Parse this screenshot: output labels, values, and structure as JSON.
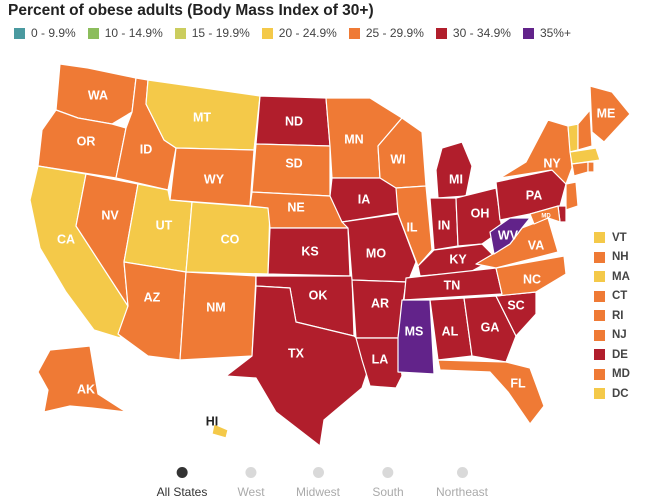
{
  "title": "Percent of obese adults (Body Mass Index of 30+)",
  "legend": [
    {
      "label": "0 - 9.9%",
      "color": "#4a9aa0"
    },
    {
      "label": "10 - 14.9%",
      "color": "#8cbd5c"
    },
    {
      "label": "15 - 19.9%",
      "color": "#cbcd5e"
    },
    {
      "label": "20 - 24.9%",
      "color": "#f4c949"
    },
    {
      "label": "25 - 29.9%",
      "color": "#ef7a35"
    },
    {
      "label": "30 - 34.9%",
      "color": "#b11e2c"
    },
    {
      "label": "35%+",
      "color": "#62238a"
    }
  ],
  "states": [
    {
      "abbr": "WA",
      "bin": 4
    },
    {
      "abbr": "OR",
      "bin": 4
    },
    {
      "abbr": "CA",
      "bin": 3
    },
    {
      "abbr": "ID",
      "bin": 4
    },
    {
      "abbr": "NV",
      "bin": 4
    },
    {
      "abbr": "MT",
      "bin": 3
    },
    {
      "abbr": "WY",
      "bin": 4
    },
    {
      "abbr": "UT",
      "bin": 3
    },
    {
      "abbr": "CO",
      "bin": 3
    },
    {
      "abbr": "AZ",
      "bin": 4
    },
    {
      "abbr": "NM",
      "bin": 4
    },
    {
      "abbr": "ND",
      "bin": 5
    },
    {
      "abbr": "SD",
      "bin": 4
    },
    {
      "abbr": "NE",
      "bin": 4
    },
    {
      "abbr": "KS",
      "bin": 5
    },
    {
      "abbr": "OK",
      "bin": 5
    },
    {
      "abbr": "TX",
      "bin": 5
    },
    {
      "abbr": "MN",
      "bin": 4
    },
    {
      "abbr": "IA",
      "bin": 5
    },
    {
      "abbr": "MO",
      "bin": 5
    },
    {
      "abbr": "AR",
      "bin": 5
    },
    {
      "abbr": "LA",
      "bin": 5
    },
    {
      "abbr": "WI",
      "bin": 4
    },
    {
      "abbr": "IL",
      "bin": 4
    },
    {
      "abbr": "MI",
      "bin": 5
    },
    {
      "abbr": "IN",
      "bin": 5
    },
    {
      "abbr": "OH",
      "bin": 5
    },
    {
      "abbr": "KY",
      "bin": 5
    },
    {
      "abbr": "TN",
      "bin": 5
    },
    {
      "abbr": "MS",
      "bin": 6
    },
    {
      "abbr": "AL",
      "bin": 5
    },
    {
      "abbr": "GA",
      "bin": 5
    },
    {
      "abbr": "FL",
      "bin": 4
    },
    {
      "abbr": "SC",
      "bin": 5
    },
    {
      "abbr": "NC",
      "bin": 4
    },
    {
      "abbr": "VA",
      "bin": 4
    },
    {
      "abbr": "WV",
      "bin": 6
    },
    {
      "abbr": "PA",
      "bin": 5
    },
    {
      "abbr": "NY",
      "bin": 4
    },
    {
      "abbr": "ME",
      "bin": 4
    },
    {
      "abbr": "AK",
      "bin": 4
    },
    {
      "abbr": "HI",
      "bin": 3
    },
    {
      "abbr": "MD",
      "bin": 4
    }
  ],
  "small_states": [
    {
      "abbr": "VT",
      "bin": 3
    },
    {
      "abbr": "NH",
      "bin": 4
    },
    {
      "abbr": "MA",
      "bin": 3
    },
    {
      "abbr": "CT",
      "bin": 4
    },
    {
      "abbr": "RI",
      "bin": 4
    },
    {
      "abbr": "NJ",
      "bin": 4
    },
    {
      "abbr": "DE",
      "bin": 5
    },
    {
      "abbr": "MD",
      "bin": 4
    },
    {
      "abbr": "DC",
      "bin": 3
    }
  ],
  "regions": [
    {
      "label": "All States",
      "active": true
    },
    {
      "label": "West",
      "active": false
    },
    {
      "label": "Midwest",
      "active": false
    },
    {
      "label": "South",
      "active": false
    },
    {
      "label": "Northeast",
      "active": false
    }
  ]
}
